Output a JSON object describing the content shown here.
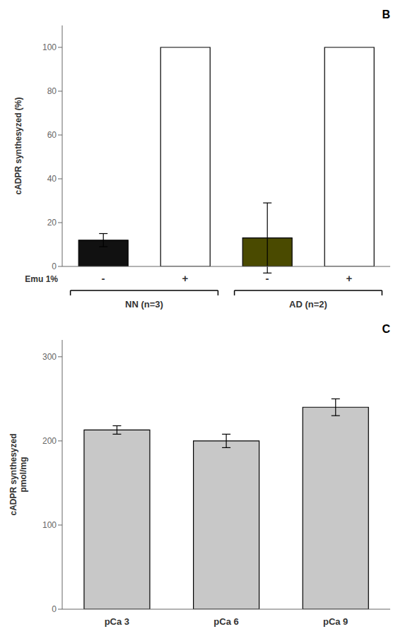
{
  "chart_data": [
    {
      "type": "bar",
      "title": "B",
      "categories": [
        "-",
        "+",
        "-",
        "+"
      ],
      "values": [
        12,
        100,
        13,
        100
      ],
      "errors": [
        3,
        0,
        16,
        0
      ],
      "colors": [
        "#111111",
        "#ffffff",
        "#4a4a00",
        "#ffffff"
      ],
      "groups": [
        "NN (n=3)",
        "AD (n=2)"
      ],
      "xlabel": "Emu 1%",
      "ylabel": "cADPR synthesyzed (%)",
      "ylim": [
        0,
        110
      ],
      "yticks": [
        0,
        20,
        40,
        60,
        80,
        100
      ],
      "grid": false
    },
    {
      "type": "bar",
      "title": "C",
      "categories": [
        "pCa 3",
        "pCa 6",
        "pCa 9"
      ],
      "values": [
        213,
        200,
        240
      ],
      "errors": [
        5,
        8,
        10
      ],
      "color": "#c8c8c8",
      "ylabel": "cADPR synthesyzed\npmol/mg",
      "ylim": [
        0,
        320
      ],
      "yticks": [
        0,
        100,
        200,
        300
      ],
      "grid": false
    }
  ]
}
